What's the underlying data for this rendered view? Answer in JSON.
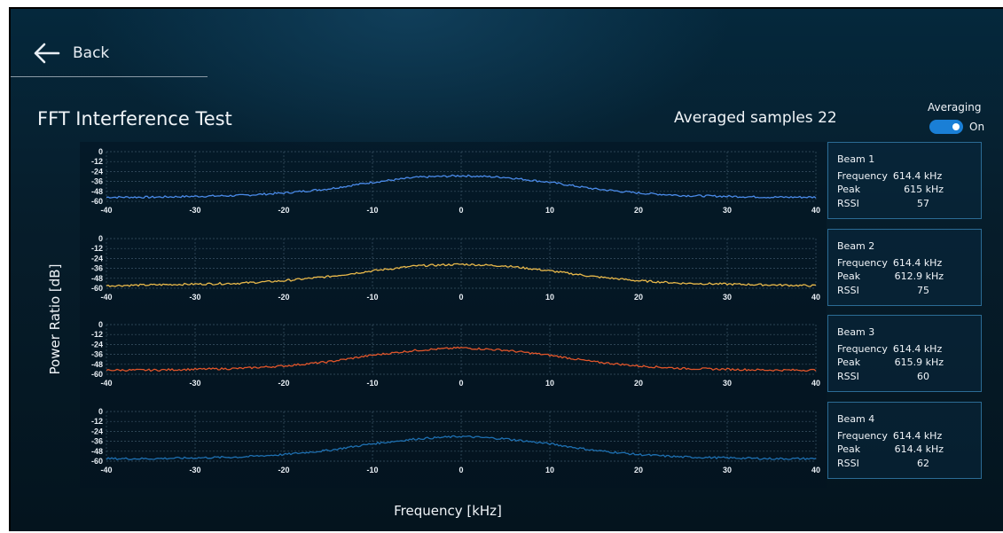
{
  "header": {
    "back_label": "Back"
  },
  "page": {
    "title": "FFT Interference Test",
    "averaged_samples_label": "Averaged samples 22",
    "averaging_label": "Averaging",
    "averaging_state": "On",
    "averaging_enabled": true
  },
  "beams": [
    {
      "name": "Beam 1",
      "frequency_label": "Frequency",
      "frequency": "614.4 kHz",
      "peak_label": "Peak",
      "peak": "615 kHz",
      "rssi_label": "RSSI",
      "rssi": "57"
    },
    {
      "name": "Beam 2",
      "frequency_label": "Frequency",
      "frequency": "614.4 kHz",
      "peak_label": "Peak",
      "peak": "612.9 kHz",
      "rssi_label": "RSSI",
      "rssi": "75"
    },
    {
      "name": "Beam 3",
      "frequency_label": "Frequency",
      "frequency": "614.4 kHz",
      "peak_label": "Peak",
      "peak": "615.9 kHz",
      "rssi_label": "RSSI",
      "rssi": "60"
    },
    {
      "name": "Beam 4",
      "frequency_label": "Frequency",
      "frequency": "614.4 kHz",
      "peak_label": "Peak",
      "peak": "614.4 kHz",
      "rssi_label": "RSSI",
      "rssi": "62"
    }
  ],
  "chart_data": {
    "type": "line",
    "xlabel": "Frequency [kHz]",
    "ylabel": "Power Ratio [dB]",
    "xlim": [
      -40,
      40
    ],
    "ylim": [
      -60,
      0
    ],
    "x_ticks": [
      -40,
      -30,
      -20,
      -10,
      0,
      10,
      20,
      30,
      40
    ],
    "y_ticks": [
      0,
      -12,
      -24,
      -36,
      -48,
      -60
    ],
    "grid": true,
    "x": [
      -40,
      -35,
      -30,
      -25,
      -20,
      -15,
      -10,
      -5,
      0,
      5,
      10,
      15,
      20,
      25,
      30,
      35,
      40
    ],
    "series": [
      {
        "name": "Beam 1",
        "color": "#4a8ae8",
        "values": [
          -55,
          -55,
          -54,
          -53,
          -50,
          -45,
          -37,
          -31,
          -29,
          -31,
          -37,
          -45,
          -50,
          -53,
          -54,
          -55,
          -55
        ]
      },
      {
        "name": "Beam 2",
        "color": "#e8b84a",
        "values": [
          -57,
          -56,
          -55,
          -54,
          -51,
          -46,
          -39,
          -33,
          -31,
          -33,
          -39,
          -46,
          -51,
          -54,
          -55,
          -56,
          -57
        ]
      },
      {
        "name": "Beam 3",
        "color": "#e0552a",
        "values": [
          -55,
          -55,
          -54,
          -53,
          -50,
          -45,
          -37,
          -31,
          -28,
          -31,
          -37,
          -45,
          -50,
          -53,
          -54,
          -55,
          -55
        ]
      },
      {
        "name": "Beam 4",
        "color": "#1e6fb0",
        "values": [
          -57,
          -57,
          -56,
          -55,
          -52,
          -47,
          -39,
          -33,
          -30,
          -33,
          -39,
          -47,
          -52,
          -55,
          -56,
          -57,
          -57
        ]
      }
    ]
  }
}
